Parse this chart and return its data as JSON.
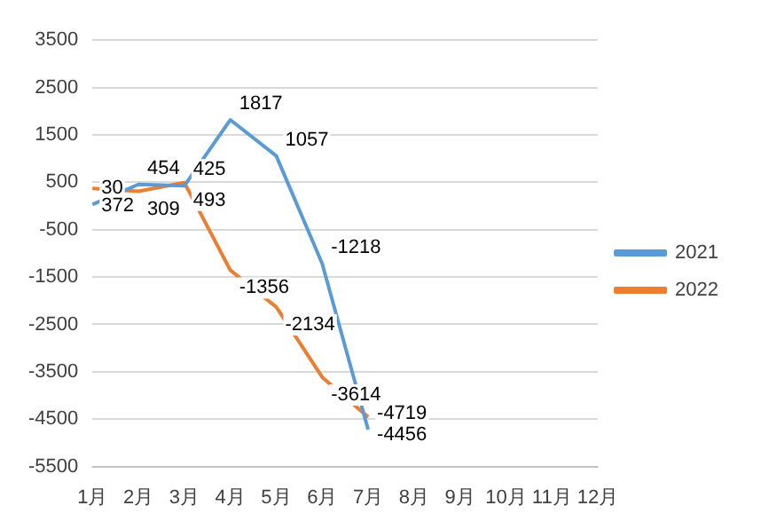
{
  "chart_data": {
    "type": "line",
    "categories": [
      "1月",
      "2月",
      "3月",
      "4月",
      "5月",
      "6月",
      "7月",
      "8月",
      "9月",
      "10月",
      "11月",
      "12月"
    ],
    "series": [
      {
        "name": "2021",
        "color": "#5b9bd5",
        "values": [
          30,
          454,
          425,
          1817,
          1057,
          -1218,
          -4719,
          null,
          null,
          null,
          null,
          null
        ]
      },
      {
        "name": "2022",
        "color": "#ed7d31",
        "values": [
          372,
          309,
          493,
          -1356,
          -2134,
          -3614,
          -4456,
          null,
          null,
          null,
          null,
          null
        ]
      }
    ],
    "ylim": [
      -5500,
      3500
    ],
    "yticks": [
      -5500,
      -4500,
      -3500,
      -2500,
      -1500,
      -500,
      500,
      1500,
      2500,
      3500
    ],
    "grid": "y",
    "legend": "right",
    "marker": "none",
    "data_labels": true
  }
}
